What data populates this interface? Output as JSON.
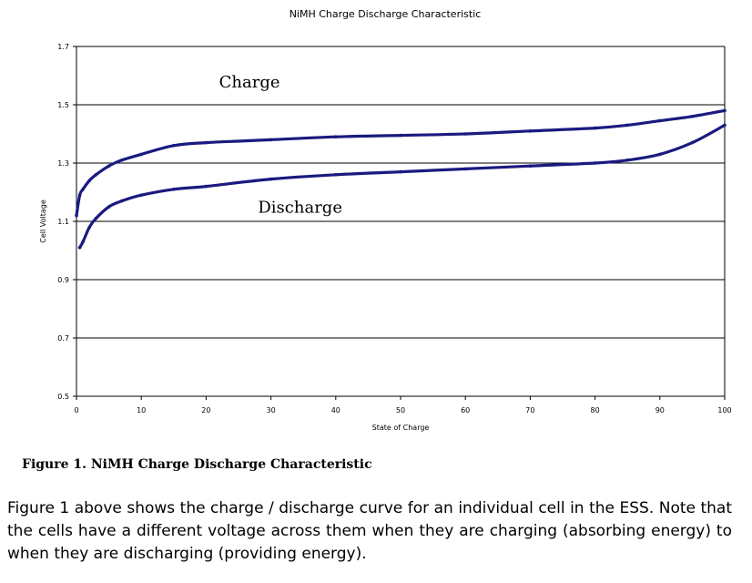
{
  "chart_data": {
    "type": "line",
    "title": "NiMH Charge Discharge Characteristic",
    "xlabel": "State of Charge",
    "ylabel": "Cell Voltage",
    "xlim": [
      0,
      100
    ],
    "ylim": [
      0.5,
      1.7
    ],
    "x_ticks": [
      0,
      10,
      20,
      30,
      40,
      50,
      60,
      70,
      80,
      90,
      100
    ],
    "y_ticks": [
      0.5,
      0.7,
      0.9,
      1.1,
      1.3,
      1.5,
      1.7
    ],
    "y_tick_labels": [
      "0.5",
      "0.7",
      "0.9",
      "1.1",
      "1.3",
      "1.5",
      "1.7"
    ],
    "grid": "horizontal",
    "line_color": "#1a1a80",
    "series": [
      {
        "name": "Charge",
        "x": [
          0,
          0.5,
          1,
          2,
          3,
          5,
          7,
          10,
          15,
          20,
          30,
          40,
          50,
          60,
          70,
          80,
          85,
          90,
          95,
          100
        ],
        "values": [
          1.12,
          1.19,
          1.21,
          1.24,
          1.26,
          1.29,
          1.31,
          1.33,
          1.36,
          1.37,
          1.38,
          1.39,
          1.395,
          1.4,
          1.41,
          1.42,
          1.43,
          1.445,
          1.46,
          1.48
        ]
      },
      {
        "name": "Discharge",
        "x": [
          0.5,
          1,
          2,
          3,
          5,
          7,
          10,
          15,
          20,
          30,
          40,
          50,
          60,
          70,
          80,
          85,
          90,
          95,
          100
        ],
        "values": [
          1.01,
          1.03,
          1.08,
          1.11,
          1.15,
          1.17,
          1.19,
          1.21,
          1.22,
          1.245,
          1.26,
          1.27,
          1.28,
          1.29,
          1.3,
          1.31,
          1.33,
          1.37,
          1.43
        ]
      }
    ],
    "annotations": [
      {
        "text": "Charge",
        "x": 22,
        "y": 1.56
      },
      {
        "text": "Discharge",
        "x": 28,
        "y": 1.13
      }
    ]
  },
  "caption": "Figure 1.  NiMH Charge Discharge Characteristic",
  "paragraph": "Figure 1 above shows the charge / discharge curve for an individual cell in the ESS. Note that the cells have a different voltage across them when they are charging (absorbing energy) to when they are discharging (providing energy)."
}
